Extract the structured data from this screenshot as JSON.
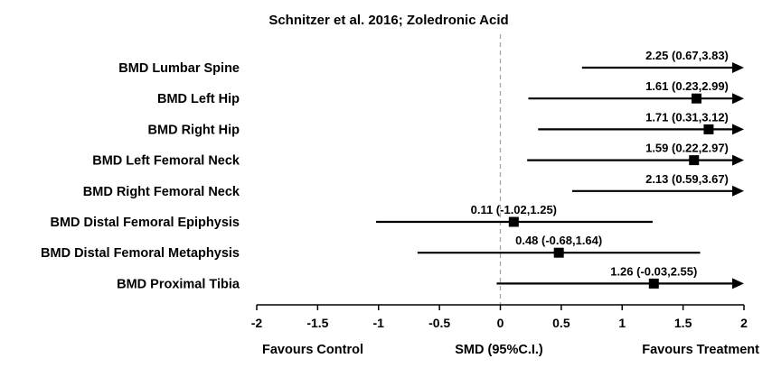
{
  "chart_data": {
    "type": "forest",
    "title": "Schnitzer et al. 2016; Zoledronic Acid",
    "xlim": [
      -2,
      2
    ],
    "xticks": [
      "-2",
      "-1.5",
      "-1",
      "-0.5",
      "0",
      "0.5",
      "1",
      "1.5",
      "2"
    ],
    "xtick_values": [
      -2,
      -1.5,
      -1,
      -0.5,
      0,
      0.5,
      1,
      1.5,
      2
    ],
    "reference_line": 0,
    "footer": {
      "left": "Favours  Control",
      "center": "SMD (95%C.I.)",
      "right": "Favours  Treatment"
    },
    "rows": [
      {
        "label": "BMD Lumbar Spine",
        "estimate": 2.25,
        "lower": 0.67,
        "upper": 3.83,
        "text": "2.25 (0.67,3.83)"
      },
      {
        "label": "BMD Left Hip",
        "estimate": 1.61,
        "lower": 0.23,
        "upper": 2.99,
        "text": "1.61 (0.23,2.99)"
      },
      {
        "label": "BMD Right Hip",
        "estimate": 1.71,
        "lower": 0.31,
        "upper": 3.12,
        "text": "1.71 (0.31,3.12)"
      },
      {
        "label": "BMD Left Femoral Neck",
        "estimate": 1.59,
        "lower": 0.22,
        "upper": 2.97,
        "text": "1.59 (0.22,2.97)"
      },
      {
        "label": "BMD Right Femoral Neck",
        "estimate": 2.13,
        "lower": 0.59,
        "upper": 3.67,
        "text": "2.13 (0.59,3.67)"
      },
      {
        "label": "BMD Distal Femoral Epiphysis",
        "estimate": 0.11,
        "lower": -1.02,
        "upper": 1.25,
        "text": "0.11 (-1.02,1.25)"
      },
      {
        "label": "BMD Distal Femoral Metaphysis",
        "estimate": 0.48,
        "lower": -0.68,
        "upper": 1.64,
        "text": "0.48 (-0.68,1.64)"
      },
      {
        "label": "BMD Proximal Tibia",
        "estimate": 1.26,
        "lower": -0.03,
        "upper": 2.55,
        "text": "1.26 (-0.03,2.55)"
      }
    ]
  }
}
